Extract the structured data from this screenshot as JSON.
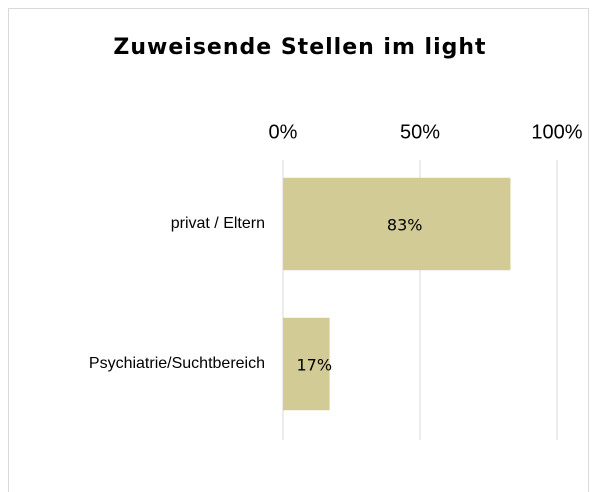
{
  "chart_data": {
    "type": "barh",
    "title": "Zuweisende Stellen im light",
    "categories": [
      "privat / Eltern",
      "Psychiatrie/Suchtbereich"
    ],
    "values": [
      83,
      17
    ],
    "value_labels": [
      "83%",
      "17%"
    ],
    "color": "#d3cb96",
    "xlim": [
      0,
      100
    ],
    "xticks": [
      {
        "value": 0,
        "label": "0%"
      },
      {
        "value": 50,
        "label": "50%"
      },
      {
        "value": 100,
        "label": "100%"
      }
    ],
    "grid": true
  }
}
